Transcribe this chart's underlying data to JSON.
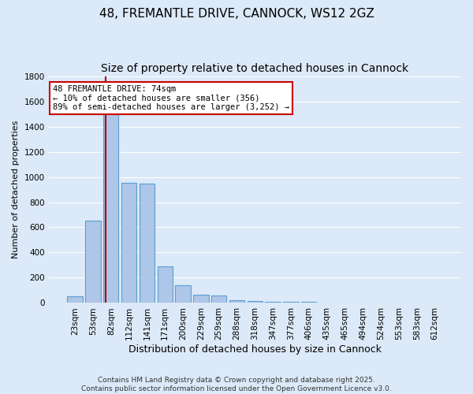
{
  "title": "48, FREMANTLE DRIVE, CANNOCK, WS12 2GZ",
  "subtitle": "Size of property relative to detached houses in Cannock",
  "xlabel": "Distribution of detached houses by size in Cannock",
  "ylabel": "Number of detached properties",
  "bar_labels": [
    "23sqm",
    "53sqm",
    "82sqm",
    "112sqm",
    "141sqm",
    "171sqm",
    "200sqm",
    "229sqm",
    "259sqm",
    "288sqm",
    "318sqm",
    "347sqm",
    "377sqm",
    "406sqm",
    "435sqm",
    "465sqm",
    "494sqm",
    "524sqm",
    "553sqm",
    "583sqm",
    "612sqm"
  ],
  "bar_values": [
    50,
    650,
    1510,
    955,
    950,
    290,
    140,
    65,
    60,
    20,
    15,
    8,
    8,
    12,
    3,
    2,
    1,
    1,
    1,
    0,
    0
  ],
  "bar_color": "#aec6e8",
  "bar_edgecolor": "#5a9fd4",
  "background_color": "#dce9f8",
  "fig_background_color": "#dce9f8",
  "grid_color": "#ffffff",
  "vline_color": "#aa0000",
  "annotation_text": "48 FREMANTLE DRIVE: 74sqm\n← 10% of detached houses are smaller (356)\n89% of semi-detached houses are larger (3,252) →",
  "annotation_box_color": "#ffffff",
  "annotation_box_edgecolor": "#cc0000",
  "ylim": [
    0,
    1800
  ],
  "yticks": [
    0,
    200,
    400,
    600,
    800,
    1000,
    1200,
    1400,
    1600,
    1800
  ],
  "footnote": "Contains HM Land Registry data © Crown copyright and database right 2025.\nContains public sector information licensed under the Open Government Licence v3.0.",
  "title_fontsize": 11,
  "subtitle_fontsize": 10,
  "xlabel_fontsize": 9,
  "ylabel_fontsize": 8,
  "tick_fontsize": 7.5,
  "annotation_fontsize": 7.5,
  "footnote_fontsize": 6.5
}
